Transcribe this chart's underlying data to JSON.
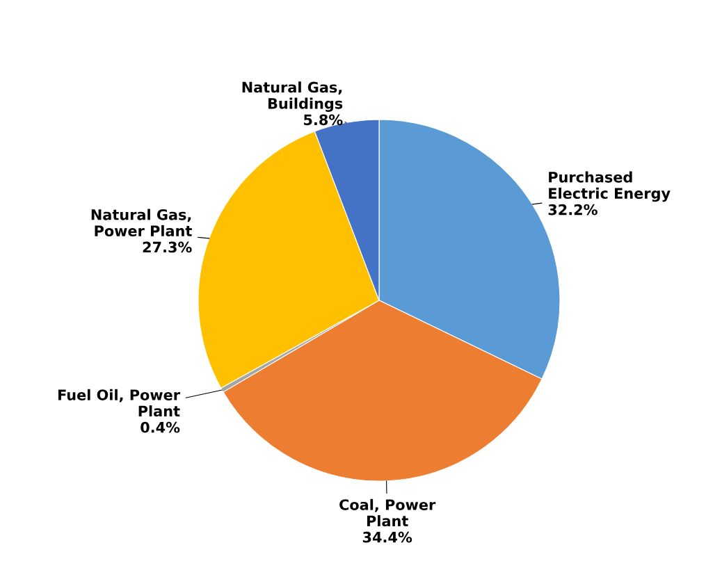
{
  "chart_data": {
    "type": "pie",
    "categories": [
      "Purchased Electric Energy",
      "Coal, Power Plant",
      "Fuel Oil, Power Plant",
      "Natural Gas, Power Plant",
      "Natural Gas, Buildings"
    ],
    "values": [
      32.2,
      34.4,
      0.4,
      27.3,
      5.8
    ],
    "value_labels": [
      "32.2%",
      "34.4%",
      "0.4%",
      "27.3%",
      "5.8%"
    ],
    "colors": [
      "#5b9bd5",
      "#ed7d31",
      "#a5a5a5",
      "#ffc000",
      "#4472c4"
    ],
    "legend": false
  }
}
